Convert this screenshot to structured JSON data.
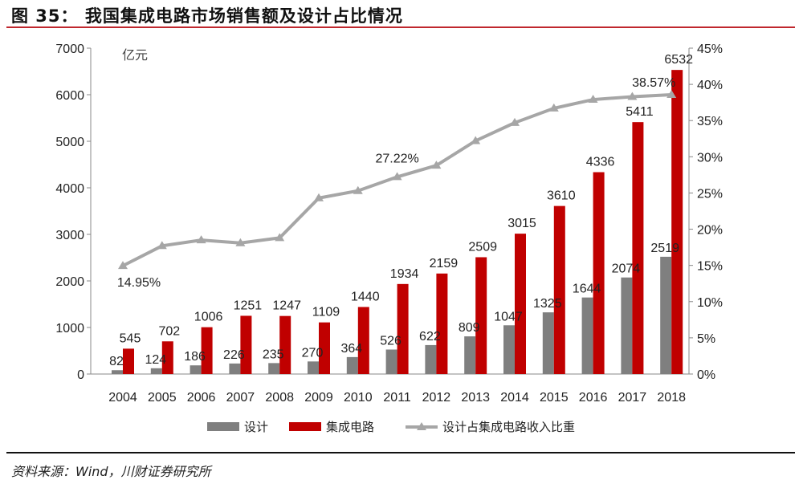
{
  "title": "图 35：  我国集成电路市场销售额及设计占比情况",
  "source": "资料来源：Wind，川财证券研究所",
  "chart_data": {
    "type": "bar",
    "categories": [
      "2004",
      "2005",
      "2006",
      "2007",
      "2008",
      "2009",
      "2010",
      "2011",
      "2012",
      "2013",
      "2014",
      "2015",
      "2016",
      "2017",
      "2018"
    ],
    "ylabel": "亿元",
    "ylim": [
      0,
      7000
    ],
    "yticks": [
      "0",
      "1000",
      "2000",
      "3000",
      "4000",
      "5000",
      "6000",
      "7000"
    ],
    "y2lim": [
      0,
      45
    ],
    "y2ticks": [
      "0%",
      "5%",
      "10%",
      "15%",
      "20%",
      "25%",
      "30%",
      "35%",
      "40%",
      "45%"
    ],
    "grid": false,
    "legend_placement": "bottom",
    "series": [
      {
        "name": "设计",
        "type": "bar",
        "color": "#7f7f7f",
        "values": [
          82,
          124,
          186,
          226,
          235,
          270,
          364,
          526,
          622,
          809,
          1047,
          1325,
          1644,
          2074,
          2519
        ]
      },
      {
        "name": "集成电路",
        "type": "bar",
        "color": "#c00000",
        "values": [
          545,
          702,
          1006,
          1251,
          1247,
          1109,
          1440,
          1934,
          2159,
          2509,
          3015,
          3610,
          4336,
          5411,
          6532
        ]
      },
      {
        "name": "设计占集成电路收入比重",
        "type": "line",
        "axis": "right",
        "color": "#a6a6a6",
        "values": [
          14.95,
          17.7,
          18.5,
          18.1,
          18.8,
          24.3,
          25.3,
          27.22,
          28.8,
          32.2,
          34.7,
          36.7,
          37.9,
          38.3,
          38.57
        ]
      }
    ],
    "annotations": [
      {
        "index": 0,
        "text": "14.95%"
      },
      {
        "index": 7,
        "text": "27.22%"
      },
      {
        "index": 14,
        "text": "38.57%"
      }
    ]
  }
}
